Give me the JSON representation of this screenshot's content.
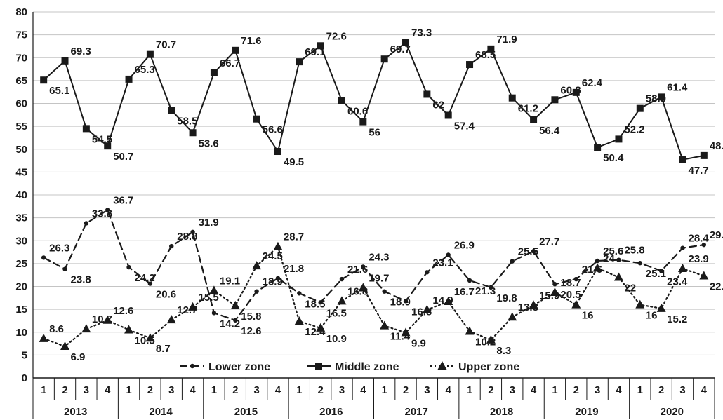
{
  "chart_data": {
    "type": "line",
    "title": "",
    "xlabel": "",
    "ylabel": "",
    "ylim": [
      0,
      80
    ],
    "yticks": [
      "0",
      "5",
      "10",
      "15",
      "20",
      "25",
      "30",
      "35",
      "40",
      "45",
      "50",
      "55",
      "60",
      "65",
      "70",
      "75",
      "80"
    ],
    "grid": "horizontal",
    "legend_position": "bottom-center",
    "years": [
      "2013",
      "2014",
      "2015",
      "2016",
      "2017",
      "2018",
      "2019",
      "2020"
    ],
    "quarters": [
      "1",
      "2",
      "3",
      "4"
    ],
    "series": [
      {
        "name": "Lower zone",
        "style": "dashed",
        "marker": "circle",
        "color": "#1a1a1a",
        "values": [
          26.3,
          23.8,
          33.8,
          36.7,
          24.2,
          20.6,
          28.8,
          31.9,
          14.2,
          12.6,
          18.9,
          21.8,
          18.5,
          16.5,
          21.6,
          24.3,
          18.9,
          16.8,
          23.1,
          26.9,
          21.3,
          19.8,
          25.5,
          27.7,
          20.5,
          21.6,
          25.6,
          25.8,
          25.1,
          23.4,
          28.4,
          29.1
        ],
        "labels": [
          "26.3",
          "23.8",
          "33.8",
          "36.7",
          "24.2",
          "20.6",
          "28.8",
          "31.9",
          "14.2",
          "12.6",
          "18.9",
          "21.8",
          "18.5",
          "16.5",
          "21.6",
          "24.3",
          "18.9",
          "16.8",
          "23.1",
          "26.9",
          "21.3",
          "19.8",
          "25.5",
          "27.7",
          "20.5",
          "21.6",
          "25.6",
          "25.8",
          "25.1",
          "23.4",
          "28.4",
          "29.1"
        ]
      },
      {
        "name": "Middle zone",
        "style": "solid",
        "marker": "square",
        "color": "#1a1a1a",
        "values": [
          65.1,
          69.3,
          54.5,
          50.7,
          65.3,
          70.7,
          58.5,
          53.6,
          66.7,
          71.6,
          56.6,
          49.5,
          69.1,
          72.6,
          60.6,
          56,
          69.7,
          73.3,
          62,
          57.4,
          68.5,
          71.9,
          61.2,
          56.4,
          60.8,
          62.4,
          50.4,
          52.2,
          58.9,
          61.4,
          47.7,
          48.6
        ],
        "labels": [
          "65.1",
          "69.3",
          "54.5",
          "50.7",
          "65.3",
          "70.7",
          "58.5",
          "53.6",
          "66.7",
          "71.6",
          "56.6",
          "49.5",
          "69.1",
          "72.6",
          "60.6",
          "56",
          "69.7",
          "73.3",
          "62",
          "57.4",
          "68.5",
          "71.9",
          "61.2",
          "56.4",
          "60.8",
          "62.4",
          "50.4",
          "52.2",
          "58.9",
          "61.4",
          "47.7",
          "48.6"
        ]
      },
      {
        "name": "Upper zone",
        "style": "dotted",
        "marker": "triangle",
        "color": "#1a1a1a",
        "values": [
          8.6,
          6.9,
          10.7,
          12.6,
          10.5,
          8.7,
          12.7,
          15.5,
          19.1,
          15.8,
          24.5,
          28.7,
          12.4,
          10.9,
          16.8,
          19.7,
          11.4,
          9.9,
          14.9,
          16.7,
          10.2,
          8.3,
          13.3,
          15.9,
          18.7,
          16,
          24,
          22,
          16,
          15.2,
          23.9,
          22.3
        ],
        "labels": [
          "8.6",
          "6.9",
          "10.7",
          "12.6",
          "10.5",
          "8.7",
          "12.7",
          "15.5",
          "19.1",
          "15.8",
          "24.5",
          "28.7",
          "12.4",
          "10.9",
          "16.8",
          "19.7",
          "11.4",
          "9.9",
          "14.9",
          "16.7",
          "10.2",
          "8.3",
          "13.3",
          "15.9",
          "18.7",
          "16",
          "24",
          "22",
          "16",
          "15.2",
          "23.9",
          "22.3"
        ]
      }
    ]
  }
}
